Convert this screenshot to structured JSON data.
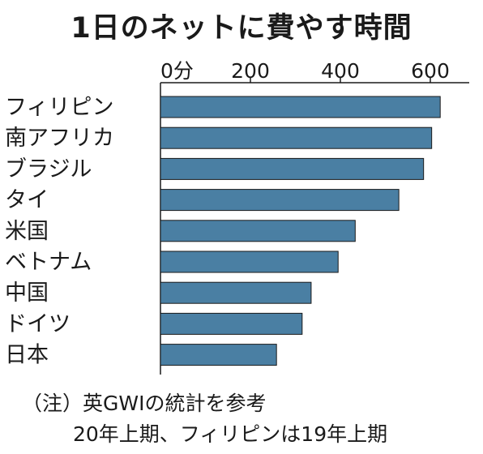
{
  "chart_data": {
    "type": "bar",
    "orientation": "horizontal",
    "title": "1日のネットに費やす時間",
    "unit": "分",
    "xlim": [
      0,
      700
    ],
    "xticks": [
      {
        "value": 0,
        "label": "0分"
      },
      {
        "value": 200,
        "label": "200"
      },
      {
        "value": 400,
        "label": "400"
      },
      {
        "value": 600,
        "label": "600"
      }
    ],
    "grid": false,
    "categories": [
      "フィリピン",
      "南アフリカ",
      "ブラジル",
      "タイ",
      "米国",
      "ベトナム",
      "中国",
      "ドイツ",
      "日本"
    ],
    "values": [
      622,
      603,
      585,
      530,
      433,
      395,
      335,
      315,
      258
    ],
    "bar_color": "#4a7fa3"
  },
  "notes": {
    "line1": "（注）英GWIの統計を参考",
    "line2": "20年上期、フィリピンは19年上期"
  }
}
